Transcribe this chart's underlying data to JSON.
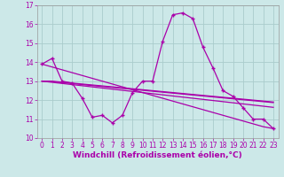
{
  "xlabel": "Windchill (Refroidissement éolien,°C)",
  "bg_color": "#cce8e8",
  "grid_color": "#aacccc",
  "line_color": "#aa00aa",
  "x": [
    0,
    1,
    2,
    3,
    4,
    5,
    6,
    7,
    8,
    9,
    10,
    11,
    12,
    13,
    14,
    15,
    16,
    17,
    18,
    19,
    20,
    21,
    22,
    23
  ],
  "windchill": [
    13.9,
    14.2,
    13.0,
    12.9,
    12.1,
    11.1,
    11.2,
    10.8,
    11.2,
    12.4,
    13.0,
    13.0,
    15.1,
    16.5,
    16.6,
    16.3,
    14.8,
    13.7,
    12.5,
    12.2,
    11.6,
    11.0,
    11.0,
    10.5
  ],
  "trend1": [
    13.9,
    13.75,
    13.6,
    13.45,
    13.3,
    13.15,
    13.0,
    12.85,
    12.7,
    12.55,
    12.4,
    12.25,
    12.1,
    11.95,
    11.8,
    11.65,
    11.5,
    11.35,
    11.2,
    11.05,
    10.9,
    10.75,
    10.6,
    10.5
  ],
  "trend2": [
    13.0,
    13.0,
    12.95,
    12.9,
    12.85,
    12.8,
    12.75,
    12.7,
    12.65,
    12.6,
    12.55,
    12.5,
    12.45,
    12.4,
    12.35,
    12.3,
    12.25,
    12.2,
    12.15,
    12.1,
    12.05,
    12.0,
    11.95,
    11.9
  ],
  "trend3": [
    13.0,
    12.98,
    12.92,
    12.88,
    12.82,
    12.77,
    12.72,
    12.67,
    12.62,
    12.57,
    12.52,
    12.47,
    12.42,
    12.37,
    12.32,
    12.27,
    12.22,
    12.17,
    12.12,
    12.07,
    12.02,
    11.97,
    11.92,
    11.87
  ],
  "trend4": [
    13.0,
    12.94,
    12.88,
    12.82,
    12.76,
    12.7,
    12.64,
    12.58,
    12.52,
    12.46,
    12.4,
    12.34,
    12.28,
    12.22,
    12.16,
    12.1,
    12.04,
    11.98,
    11.92,
    11.86,
    11.8,
    11.74,
    11.68,
    11.62
  ],
  "ylim": [
    10,
    17
  ],
  "yticks": [
    10,
    11,
    12,
    13,
    14,
    15,
    16,
    17
  ],
  "ylabel_fontsize": 5.5,
  "xlabel_fontsize": 6.5
}
